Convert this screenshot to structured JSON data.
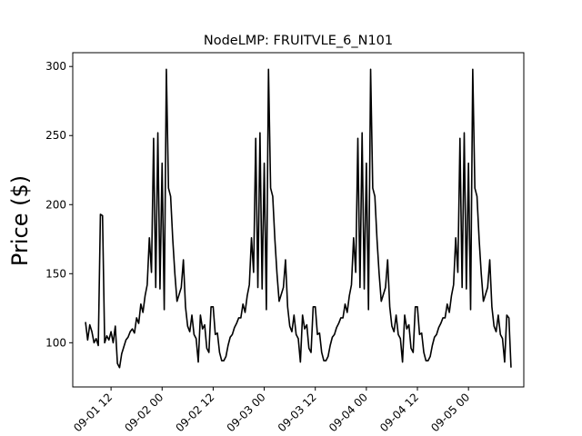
{
  "chart_data": {
    "type": "line",
    "title": "NodeLMP: FRUITVLE_6_N101",
    "xlabel": "",
    "ylabel": "Price ($)",
    "xlim": [
      "2018-09-01 03:00",
      "2018-09-05 13:00"
    ],
    "ylim": [
      68,
      310
    ],
    "x_ticks": [
      {
        "value": "2018-09-01 12:00",
        "label": "09-01 12"
      },
      {
        "value": "2018-09-02 00:00",
        "label": "09-02 00"
      },
      {
        "value": "2018-09-02 12:00",
        "label": "09-02 12"
      },
      {
        "value": "2018-09-03 00:00",
        "label": "09-03 00"
      },
      {
        "value": "2018-09-03 12:00",
        "label": "09-03 12"
      },
      {
        "value": "2018-09-04 00:00",
        "label": "09-04 00"
      },
      {
        "value": "2018-09-04 12:00",
        "label": "09-04 12"
      },
      {
        "value": "2018-09-05 00:00",
        "label": "09-05 00"
      }
    ],
    "y_ticks": [
      100,
      150,
      200,
      250,
      300
    ],
    "grid": false,
    "legend": "none",
    "color": "#000000",
    "series": [
      {
        "x": [
          "2018-09-01 06:00",
          "2018-09-01 06:30",
          "2018-09-01 07:00",
          "2018-09-01 07:30",
          "2018-09-01 08:00",
          "2018-09-01 08:30",
          "2018-09-01 09:00",
          "2018-09-01 09:30",
          "2018-09-01 10:00",
          "2018-09-01 10:30",
          "2018-09-01 11:00",
          "2018-09-01 11:30",
          "2018-09-01 12:00",
          "2018-09-01 12:30",
          "2018-09-01 13:00",
          "2018-09-01 13:30",
          "2018-09-01 14:00",
          "2018-09-01 14:30",
          "2018-09-01 15:00",
          "2018-09-01 15:30",
          "2018-09-01 16:00",
          "2018-09-01 16:30",
          "2018-09-01 17:00",
          "2018-09-01 17:30",
          "2018-09-01 18:00",
          "2018-09-01 18:30",
          "2018-09-01 19:00",
          "2018-09-01 19:30",
          "2018-09-01 20:00",
          "2018-09-01 20:30",
          "2018-09-01 21:00",
          "2018-09-01 21:30",
          "2018-09-01 22:00",
          "2018-09-01 22:30",
          "2018-09-01 23:00",
          "2018-09-01 23:30",
          "2018-09-02 00:00",
          "2018-09-02 00:30",
          "2018-09-02 01:00",
          "2018-09-02 01:30",
          "2018-09-02 02:00",
          "2018-09-02 02:30",
          "2018-09-02 03:00",
          "2018-09-02 03:30",
          "2018-09-02 04:00",
          "2018-09-02 04:30",
          "2018-09-02 05:00",
          "2018-09-02 05:30",
          "2018-09-02 06:00",
          "2018-09-02 06:30",
          "2018-09-02 07:00",
          "2018-09-02 07:30",
          "2018-09-02 08:00",
          "2018-09-02 08:30",
          "2018-09-02 09:00",
          "2018-09-02 09:30",
          "2018-09-02 10:00",
          "2018-09-02 10:30",
          "2018-09-02 11:00",
          "2018-09-02 11:30",
          "2018-09-02 12:00",
          "2018-09-02 12:30",
          "2018-09-02 13:00",
          "2018-09-02 13:30",
          "2018-09-02 14:00",
          "2018-09-02 14:30",
          "2018-09-02 15:00",
          "2018-09-02 15:30",
          "2018-09-02 16:00",
          "2018-09-02 16:30",
          "2018-09-02 17:00",
          "2018-09-02 17:30",
          "2018-09-02 18:00",
          "2018-09-02 18:30",
          "2018-09-02 19:00",
          "2018-09-02 19:30",
          "2018-09-02 20:00",
          "2018-09-02 20:30",
          "2018-09-02 21:00",
          "2018-09-02 21:30",
          "2018-09-02 22:00",
          "2018-09-02 22:30",
          "2018-09-02 23:00",
          "2018-09-02 23:30",
          "2018-09-03 00:00",
          "2018-09-03 00:30",
          "2018-09-03 01:00",
          "2018-09-03 01:30",
          "2018-09-03 02:00",
          "2018-09-03 02:30",
          "2018-09-03 03:00",
          "2018-09-03 03:30",
          "2018-09-03 04:00",
          "2018-09-03 04:30",
          "2018-09-03 05:00",
          "2018-09-03 05:30",
          "2018-09-03 06:00",
          "2018-09-03 06:30",
          "2018-09-03 07:00",
          "2018-09-03 07:30",
          "2018-09-03 08:00",
          "2018-09-03 08:30",
          "2018-09-03 09:00",
          "2018-09-03 09:30",
          "2018-09-03 10:00",
          "2018-09-03 10:30",
          "2018-09-03 11:00",
          "2018-09-03 11:30",
          "2018-09-03 12:00",
          "2018-09-03 12:30",
          "2018-09-03 13:00",
          "2018-09-03 13:30",
          "2018-09-03 14:00",
          "2018-09-03 14:30",
          "2018-09-03 15:00",
          "2018-09-03 15:30",
          "2018-09-03 16:00",
          "2018-09-03 16:30",
          "2018-09-03 17:00",
          "2018-09-03 17:30",
          "2018-09-03 18:00",
          "2018-09-03 18:30",
          "2018-09-03 19:00",
          "2018-09-03 19:30",
          "2018-09-03 20:00",
          "2018-09-03 20:30",
          "2018-09-03 21:00",
          "2018-09-03 21:30",
          "2018-09-03 22:00",
          "2018-09-03 22:30",
          "2018-09-03 23:00",
          "2018-09-03 23:30",
          "2018-09-04 00:00",
          "2018-09-04 00:30",
          "2018-09-04 01:00",
          "2018-09-04 01:30",
          "2018-09-04 02:00",
          "2018-09-04 02:30",
          "2018-09-04 03:00",
          "2018-09-04 03:30",
          "2018-09-04 04:00",
          "2018-09-04 04:30",
          "2018-09-04 05:00",
          "2018-09-04 05:30",
          "2018-09-04 06:00",
          "2018-09-04 06:30",
          "2018-09-04 07:00",
          "2018-09-04 07:30",
          "2018-09-04 08:00",
          "2018-09-04 08:30",
          "2018-09-04 09:00",
          "2018-09-04 09:30",
          "2018-09-04 10:00",
          "2018-09-04 10:30",
          "2018-09-04 11:00",
          "2018-09-04 11:30",
          "2018-09-04 12:00",
          "2018-09-04 12:30",
          "2018-09-04 13:00",
          "2018-09-04 13:30",
          "2018-09-04 14:00",
          "2018-09-04 14:30",
          "2018-09-04 15:00",
          "2018-09-04 15:30",
          "2018-09-04 16:00",
          "2018-09-04 16:30",
          "2018-09-04 17:00",
          "2018-09-04 17:30",
          "2018-09-04 18:00",
          "2018-09-04 18:30",
          "2018-09-04 19:00",
          "2018-09-04 19:30",
          "2018-09-04 20:00",
          "2018-09-04 20:30",
          "2018-09-04 21:00",
          "2018-09-04 21:30",
          "2018-09-04 22:00",
          "2018-09-04 22:30",
          "2018-09-04 23:00",
          "2018-09-04 23:30",
          "2018-09-05 00:00",
          "2018-09-05 00:30",
          "2018-09-05 01:00",
          "2018-09-05 01:30",
          "2018-09-05 02:00",
          "2018-09-05 02:30",
          "2018-09-05 03:00",
          "2018-09-05 03:30",
          "2018-09-05 04:00",
          "2018-09-05 04:30",
          "2018-09-05 05:00",
          "2018-09-05 05:30",
          "2018-09-05 06:00",
          "2018-09-05 06:30",
          "2018-09-05 07:00",
          "2018-09-05 07:30",
          "2018-09-05 08:00",
          "2018-09-05 08:30",
          "2018-09-05 09:00",
          "2018-09-05 09:30",
          "2018-09-05 10:00"
        ],
        "y": [
          115,
          102,
          113,
          108,
          100,
          103,
          98,
          193,
          192,
          100,
          105,
          102,
          108,
          100,
          112,
          85,
          82,
          92,
          97,
          102,
          104,
          108,
          110,
          107,
          118,
          114,
          128,
          122,
          134,
          142,
          176,
          151,
          248,
          140,
          252,
          139,
          230,
          124,
          298,
          212,
          206,
          175,
          150,
          130,
          135,
          140,
          160,
          126,
          112,
          108,
          120,
          106,
          103,
          86,
          120,
          110,
          113,
          96,
          93,
          126,
          126,
          106,
          107,
          93,
          87,
          87,
          90,
          98,
          104,
          106,
          111,
          114,
          118,
          118,
          128,
          122,
          134,
          142,
          176,
          151,
          248,
          140,
          252,
          139,
          230,
          124,
          298,
          212,
          206,
          175,
          150,
          130,
          135,
          140,
          160,
          126,
          112,
          108,
          120,
          106,
          103,
          86,
          120,
          110,
          113,
          96,
          93,
          126,
          126,
          106,
          107,
          93,
          87,
          87,
          90,
          98,
          104,
          106,
          111,
          114,
          118,
          118,
          128,
          122,
          134,
          142,
          176,
          151,
          248,
          140,
          252,
          139,
          230,
          124,
          298,
          212,
          206,
          175,
          150,
          130,
          135,
          140,
          160,
          126,
          112,
          108,
          120,
          106,
          103,
          86,
          120,
          110,
          113,
          96,
          93,
          126,
          126,
          106,
          107,
          93,
          87,
          87,
          90,
          98,
          104,
          106,
          111,
          114,
          118,
          118,
          128,
          122,
          134,
          142,
          176,
          151,
          248,
          140,
          252,
          139,
          230,
          124,
          298,
          212,
          206,
          175,
          150,
          130,
          135,
          140,
          160,
          126,
          112,
          108,
          120,
          106,
          103,
          86,
          120,
          118,
          82
        ]
      }
    ]
  }
}
